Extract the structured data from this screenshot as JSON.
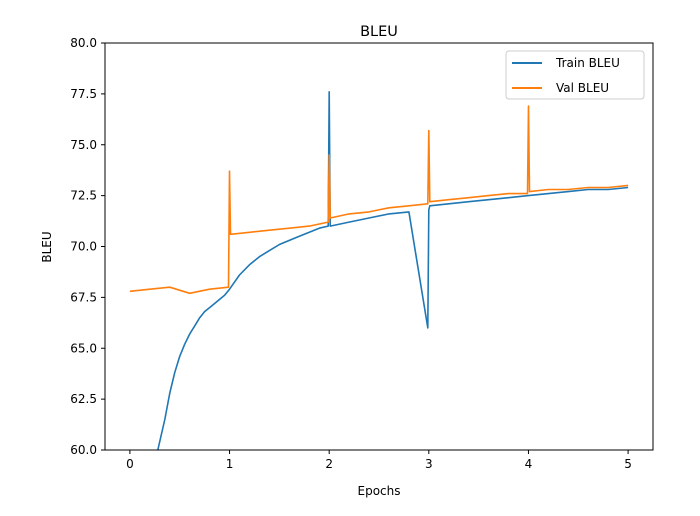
{
  "chart_data": {
    "type": "line",
    "title": "BLEU",
    "xlabel": "Epochs",
    "ylabel": "BLEU",
    "xlim": [
      -0.25,
      5.25
    ],
    "ylim": [
      60.0,
      80.0
    ],
    "x_ticks": [
      0,
      1,
      2,
      3,
      4,
      5
    ],
    "x_tick_labels": [
      "0",
      "1",
      "2",
      "3",
      "4",
      "5"
    ],
    "y_ticks": [
      60.0,
      62.5,
      65.0,
      67.5,
      70.0,
      72.5,
      75.0,
      77.5,
      80.0
    ],
    "y_tick_labels": [
      "60.0",
      "62.5",
      "65.0",
      "67.5",
      "70.0",
      "72.5",
      "75.0",
      "77.5",
      "80.0"
    ],
    "grid": false,
    "legend_position": "top-right",
    "series": [
      {
        "name": "Train BLEU",
        "color": "#1f77b4",
        "x": [
          0.28,
          0.35,
          0.4,
          0.45,
          0.5,
          0.55,
          0.6,
          0.65,
          0.7,
          0.75,
          0.8,
          0.85,
          0.9,
          0.95,
          1.0,
          1.1,
          1.2,
          1.3,
          1.4,
          1.5,
          1.6,
          1.7,
          1.8,
          1.9,
          1.99,
          2.0,
          2.01,
          2.2,
          2.4,
          2.6,
          2.8,
          2.99,
          3.0,
          3.01,
          3.2,
          3.4,
          3.6,
          3.8,
          4.0,
          4.2,
          4.4,
          4.6,
          4.8,
          5.0
        ],
        "y": [
          60.0,
          61.5,
          62.8,
          63.8,
          64.6,
          65.2,
          65.7,
          66.1,
          66.5,
          66.8,
          67.0,
          67.2,
          67.4,
          67.6,
          67.9,
          68.6,
          69.1,
          69.5,
          69.8,
          70.1,
          70.3,
          70.5,
          70.7,
          70.9,
          71.0,
          77.6,
          71.0,
          71.2,
          71.4,
          71.6,
          71.7,
          66.0,
          71.8,
          72.0,
          72.1,
          72.2,
          72.3,
          72.4,
          72.5,
          72.6,
          72.7,
          72.8,
          72.8,
          72.9
        ]
      },
      {
        "name": "Val BLEU",
        "color": "#ff7f0e",
        "x": [
          0.0,
          0.2,
          0.4,
          0.6,
          0.8,
          0.99,
          1.0,
          1.01,
          1.2,
          1.4,
          1.6,
          1.8,
          1.99,
          2.0,
          2.01,
          2.2,
          2.4,
          2.6,
          2.8,
          2.99,
          3.0,
          3.01,
          3.2,
          3.4,
          3.6,
          3.8,
          3.99,
          4.0,
          4.01,
          4.2,
          4.4,
          4.6,
          4.8,
          5.0
        ],
        "y": [
          67.8,
          67.9,
          68.0,
          67.7,
          67.9,
          68.0,
          73.7,
          70.6,
          70.7,
          70.8,
          70.9,
          71.0,
          71.2,
          74.5,
          71.4,
          71.6,
          71.7,
          71.9,
          72.0,
          72.1,
          75.7,
          72.2,
          72.3,
          72.4,
          72.5,
          72.6,
          72.6,
          76.9,
          72.7,
          72.8,
          72.8,
          72.9,
          72.9,
          73.0
        ]
      }
    ]
  }
}
